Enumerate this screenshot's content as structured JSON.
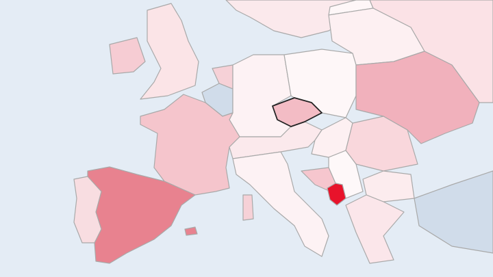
{
  "map": {
    "ocean_color": "#e4ecf5",
    "border_color": "#a9a9a9",
    "selected_border_color": "#222222",
    "regions": {
      "spain": {
        "fill": "#e8828f"
      },
      "portugal": {
        "fill": "#f8dde1"
      },
      "france": {
        "fill": "#f5c5cc"
      },
      "uk": {
        "fill": "#fbe4e7"
      },
      "ireland": {
        "fill": "#f6ccd3"
      },
      "germany": {
        "fill": "#fdf2f4"
      },
      "poland": {
        "fill": "#fef7f8"
      },
      "czechia": {
        "fill": "#f3bcc5",
        "selected": true
      },
      "ukraine": {
        "fill": "#f1b1bc"
      },
      "belarus": {
        "fill": "#fdf0f2"
      },
      "russia": {
        "fill": "#fbe2e6"
      },
      "belgium": {
        "fill": "#d0dcea"
      },
      "netherlands": {
        "fill": "#f6d1d7"
      },
      "alps": {
        "fill": "#fbe9ec"
      },
      "italy": {
        "fill": "#fdf2f4"
      },
      "hungary": {
        "fill": "#fdf0f2"
      },
      "romania": {
        "fill": "#f9d7dc"
      },
      "bosnia": {
        "fill": "#f6c6ce"
      },
      "montenegro": {
        "fill": "#e8132b"
      },
      "serbia": {
        "fill": "#fef8f9"
      },
      "bulgaria": {
        "fill": "#fcecee"
      },
      "greece": {
        "fill": "#fbe6ea"
      },
      "turkey": {
        "fill": "#d0dcea"
      },
      "sardinia": {
        "fill": "#f6d1d7"
      },
      "scandinavia": {
        "fill": "#fbe9ec"
      },
      "baltics": {
        "fill": "#fef7f8"
      },
      "balearics": {
        "fill": "#e8828f"
      }
    }
  }
}
